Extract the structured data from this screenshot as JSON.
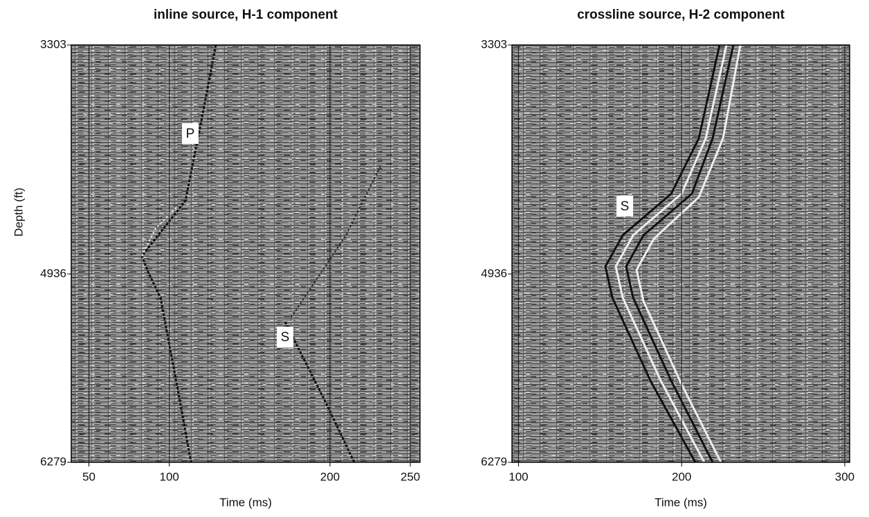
{
  "chart_data": [
    {
      "type": "seismic",
      "title": "inline source, H-1 component",
      "xlabel": "Time (ms)",
      "ylabel": "Depth (ft)",
      "xlim": [
        39,
        256
      ],
      "xticks": [
        50,
        100,
        200,
        250
      ],
      "ylim": [
        6279,
        3303
      ],
      "yticks": [
        3303,
        4936,
        6279
      ],
      "annotations": [
        "P",
        "S"
      ],
      "grid": true
    },
    {
      "type": "seismic",
      "title": "crossline source, H-2 component",
      "xlabel": "Time (ms)",
      "xlim": [
        96,
        303
      ],
      "xticks": [
        100,
        200,
        300
      ],
      "ylim": [
        6279,
        3303
      ],
      "yticks": [
        3303,
        4936,
        6279
      ],
      "annotations": [
        "S"
      ],
      "grid": true
    }
  ]
}
